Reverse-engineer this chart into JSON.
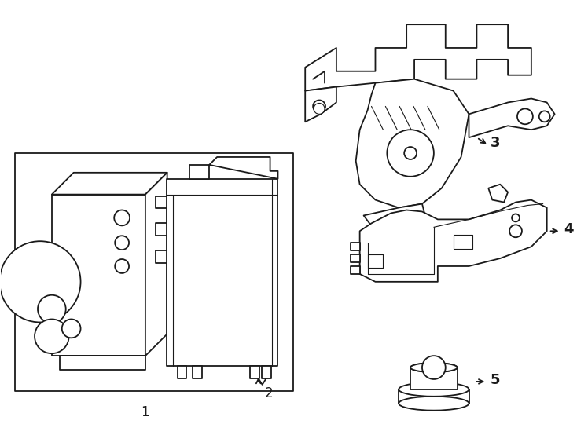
{
  "background_color": "#ffffff",
  "line_color": "#1a1a1a",
  "line_width": 1.3,
  "label_fontsize": 12,
  "figsize": [
    7.34,
    5.4
  ],
  "dpi": 100
}
